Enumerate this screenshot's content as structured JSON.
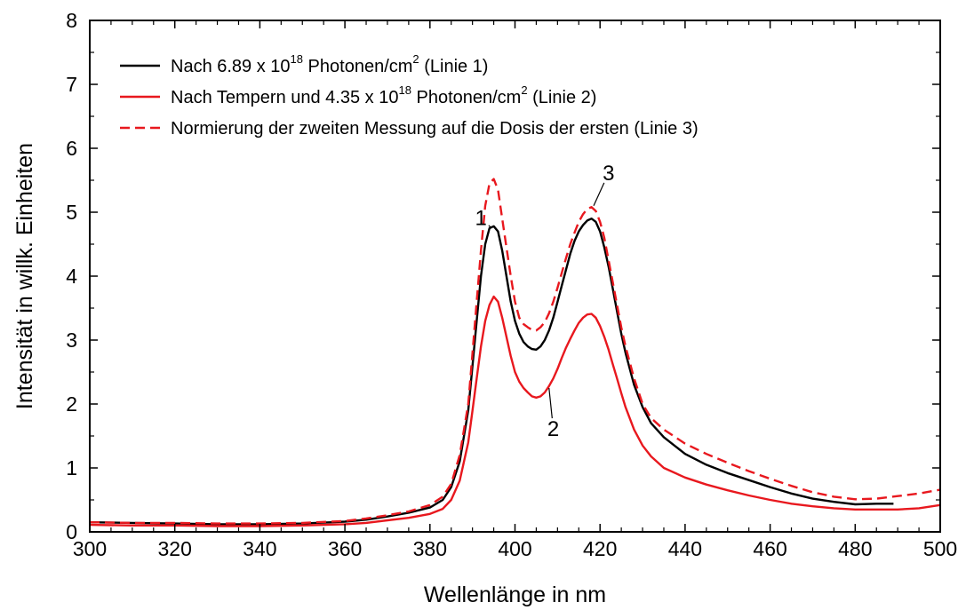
{
  "chart_data": {
    "type": "line",
    "xlabel": "Wellenlänge in nm",
    "ylabel": "Intensität in willk. Einheiten",
    "xlim": [
      300,
      500
    ],
    "ylim": [
      0,
      8
    ],
    "xticks": [
      300,
      320,
      340,
      360,
      380,
      400,
      420,
      440,
      460,
      480,
      500
    ],
    "yticks": [
      0,
      1,
      2,
      3,
      4,
      5,
      6,
      7,
      8
    ],
    "grid": false,
    "legend_position": "top-left",
    "series": [
      {
        "legend": {
          "before": "Nach 6.89 x 10",
          "sup1": "18",
          "middle": " Photonen/cm",
          "sup2": "2",
          "after": " (Linie 1)"
        },
        "color": "#000000",
        "dash": "solid",
        "x": [
          300,
          310,
          320,
          330,
          340,
          350,
          360,
          365,
          370,
          375,
          380,
          383,
          385,
          387,
          389,
          390,
          391,
          392,
          393,
          394,
          395,
          396,
          397,
          398,
          399,
          400,
          401,
          402,
          403,
          404,
          405,
          406,
          407,
          408,
          409,
          410,
          411,
          412,
          413,
          414,
          415,
          416,
          417,
          418,
          419,
          420,
          421,
          422,
          423,
          424,
          425,
          426,
          428,
          430,
          432,
          435,
          440,
          445,
          450,
          455,
          460,
          465,
          470,
          475,
          480,
          485,
          489
        ],
        "y": [
          0.15,
          0.14,
          0.13,
          0.12,
          0.12,
          0.13,
          0.16,
          0.19,
          0.24,
          0.3,
          0.38,
          0.5,
          0.7,
          1.1,
          1.9,
          2.6,
          3.3,
          4.0,
          4.5,
          4.75,
          4.78,
          4.7,
          4.4,
          4.0,
          3.6,
          3.3,
          3.1,
          2.97,
          2.9,
          2.86,
          2.85,
          2.9,
          3.0,
          3.15,
          3.35,
          3.6,
          3.85,
          4.1,
          4.35,
          4.55,
          4.7,
          4.8,
          4.87,
          4.9,
          4.85,
          4.7,
          4.45,
          4.15,
          3.8,
          3.45,
          3.1,
          2.8,
          2.3,
          1.95,
          1.7,
          1.48,
          1.22,
          1.05,
          0.92,
          0.81,
          0.7,
          0.6,
          0.52,
          0.47,
          0.43,
          0.44,
          0.44
        ]
      },
      {
        "legend": {
          "before": "Nach Tempern  und 4.35 x 10",
          "sup1": "18",
          "middle": " Photonen/cm",
          "sup2": "2",
          "after": " (Linie 2)"
        },
        "color": "#e8181e",
        "dash": "solid",
        "x": [
          300,
          310,
          320,
          330,
          340,
          350,
          360,
          365,
          370,
          375,
          380,
          383,
          385,
          387,
          389,
          390,
          391,
          392,
          393,
          394,
          395,
          396,
          397,
          398,
          399,
          400,
          401,
          402,
          403,
          404,
          405,
          406,
          407,
          408,
          409,
          410,
          411,
          412,
          413,
          414,
          415,
          416,
          417,
          418,
          419,
          420,
          421,
          422,
          423,
          424,
          425,
          426,
          428,
          430,
          432,
          435,
          440,
          445,
          450,
          455,
          460,
          465,
          470,
          475,
          480,
          485,
          490,
          495,
          500
        ],
        "y": [
          0.11,
          0.1,
          0.1,
          0.09,
          0.09,
          0.1,
          0.12,
          0.14,
          0.18,
          0.22,
          0.28,
          0.36,
          0.5,
          0.8,
          1.4,
          1.9,
          2.4,
          2.9,
          3.3,
          3.55,
          3.68,
          3.6,
          3.35,
          3.05,
          2.75,
          2.5,
          2.35,
          2.25,
          2.18,
          2.12,
          2.1,
          2.12,
          2.18,
          2.28,
          2.4,
          2.55,
          2.72,
          2.88,
          3.02,
          3.15,
          3.27,
          3.35,
          3.4,
          3.41,
          3.35,
          3.22,
          3.05,
          2.85,
          2.62,
          2.4,
          2.17,
          1.95,
          1.6,
          1.35,
          1.18,
          1.0,
          0.85,
          0.74,
          0.65,
          0.57,
          0.5,
          0.44,
          0.4,
          0.37,
          0.35,
          0.35,
          0.35,
          0.37,
          0.42
        ]
      },
      {
        "legend": {
          "before": "Normierung der zweiten Messung auf die Dosis der ersten (Linie 3)",
          "sup1": "",
          "middle": "",
          "sup2": "",
          "after": ""
        },
        "color": "#e8181e",
        "dash": "dashed",
        "x": [
          300,
          310,
          320,
          330,
          340,
          350,
          360,
          365,
          370,
          375,
          380,
          383,
          385,
          387,
          389,
          390,
          391,
          392,
          393,
          394,
          395,
          396,
          397,
          398,
          399,
          400,
          401,
          402,
          403,
          404,
          405,
          406,
          407,
          408,
          409,
          410,
          411,
          412,
          413,
          414,
          415,
          416,
          417,
          418,
          419,
          420,
          421,
          422,
          423,
          424,
          425,
          426,
          428,
          430,
          432,
          435,
          440,
          445,
          450,
          455,
          460,
          465,
          470,
          475,
          480,
          485,
          490,
          495,
          500
        ],
        "y": [
          0.15,
          0.14,
          0.14,
          0.13,
          0.13,
          0.14,
          0.17,
          0.21,
          0.26,
          0.32,
          0.42,
          0.55,
          0.75,
          1.2,
          2.0,
          2.8,
          3.6,
          4.4,
          5.1,
          5.45,
          5.52,
          5.35,
          4.9,
          4.45,
          4.0,
          3.6,
          3.35,
          3.25,
          3.2,
          3.16,
          3.15,
          3.2,
          3.28,
          3.42,
          3.6,
          3.82,
          4.05,
          4.28,
          4.5,
          4.68,
          4.85,
          4.97,
          5.05,
          5.08,
          5.02,
          4.85,
          4.6,
          4.25,
          3.9,
          3.55,
          3.2,
          2.9,
          2.4,
          2.0,
          1.78,
          1.6,
          1.38,
          1.22,
          1.08,
          0.95,
          0.83,
          0.72,
          0.62,
          0.55,
          0.51,
          0.52,
          0.56,
          0.6,
          0.66
        ]
      }
    ],
    "annotations": [
      {
        "text": "1",
        "text_x": 392,
        "text_y": 4.8,
        "point_x": 394.5,
        "point_y": 4.75
      },
      {
        "text": "3",
        "text_x": 422,
        "text_y": 5.5,
        "point_x": 418.5,
        "point_y": 5.1
      },
      {
        "text": "2",
        "text_x": 409,
        "text_y": 1.5,
        "point_x": 408,
        "point_y": 2.25
      }
    ]
  }
}
